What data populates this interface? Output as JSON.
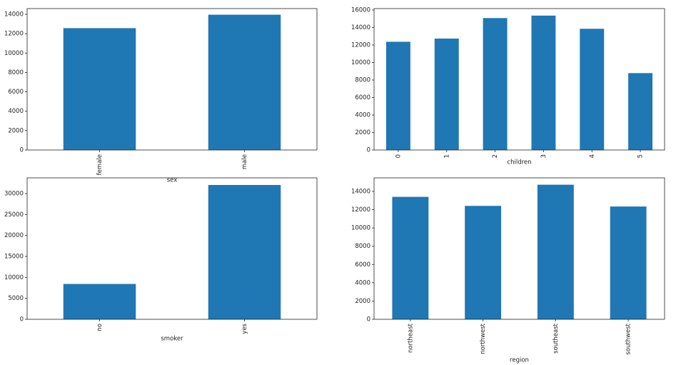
{
  "chart_data": [
    {
      "type": "bar",
      "x_label": "sex",
      "categories": [
        "female",
        "male"
      ],
      "values": [
        12570,
        13956
      ],
      "color": "#1f77b4",
      "ylim": [
        0,
        14590
      ],
      "yticks": [
        0,
        2000,
        4000,
        6000,
        8000,
        10000,
        12000,
        14000
      ],
      "grid": false
    },
    {
      "type": "bar",
      "x_label": "children",
      "categories": [
        "0",
        "1",
        "2",
        "3",
        "4",
        "5"
      ],
      "values": [
        12366,
        12731,
        15074,
        15355,
        13851,
        8786
      ],
      "color": "#1f77b4",
      "ylim": [
        0,
        16160
      ],
      "yticks": [
        0,
        2000,
        4000,
        6000,
        8000,
        10000,
        12000,
        14000,
        16000
      ],
      "grid": false
    },
    {
      "type": "bar",
      "x_label": "smoker",
      "categories": [
        "no",
        "yes"
      ],
      "values": [
        8434,
        32050
      ],
      "color": "#1f77b4",
      "ylim": [
        0,
        33750
      ],
      "yticks": [
        0,
        5000,
        10000,
        15000,
        20000,
        25000,
        30000
      ],
      "grid": false
    },
    {
      "type": "bar",
      "x_label": "region",
      "categories": [
        "northeast",
        "northwest",
        "southeast",
        "southwest"
      ],
      "values": [
        13406,
        12418,
        14735,
        12347
      ],
      "color": "#1f77b4",
      "ylim": [
        0,
        15486
      ],
      "yticks": [
        0,
        2000,
        4000,
        6000,
        8000,
        10000,
        12000,
        14000
      ],
      "grid": false
    }
  ]
}
